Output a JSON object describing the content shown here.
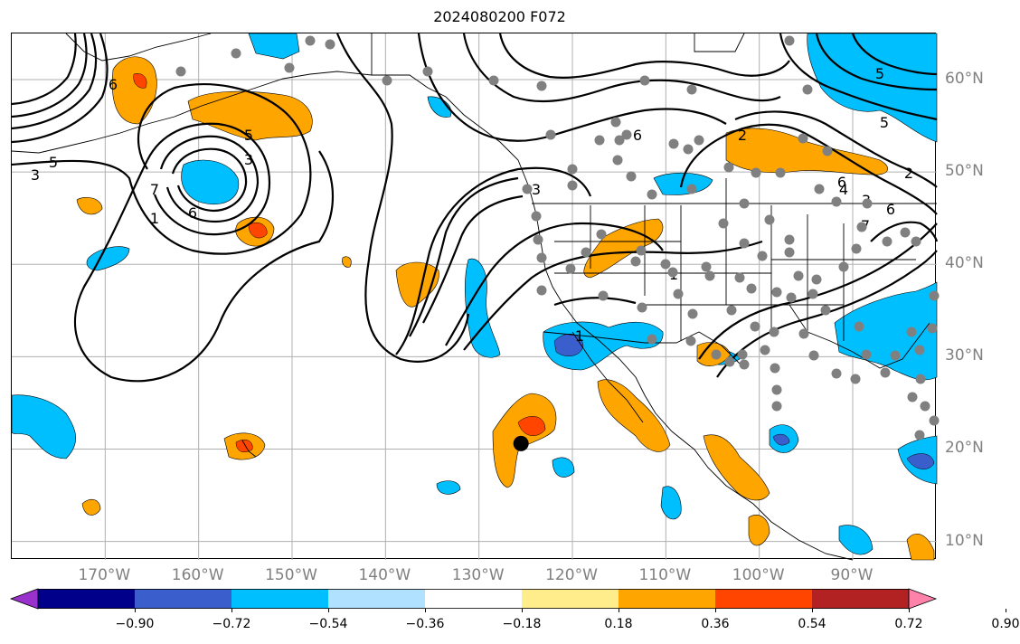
{
  "title": "2024080200 F072",
  "map": {
    "lon_range": [
      -180,
      -81
    ],
    "lat_range": [
      8,
      65
    ],
    "grid": true,
    "lon_ticks": [
      {
        "value": -170,
        "label": "170°W"
      },
      {
        "value": -160,
        "label": "160°W"
      },
      {
        "value": -150,
        "label": "150°W"
      },
      {
        "value": -140,
        "label": "140°W"
      },
      {
        "value": -130,
        "label": "130°W"
      },
      {
        "value": -120,
        "label": "120°W"
      },
      {
        "value": -110,
        "label": "110°W"
      },
      {
        "value": -100,
        "label": "100°W"
      },
      {
        "value": -90,
        "label": "90°W"
      }
    ],
    "lat_ticks": [
      {
        "value": 60,
        "label": "60°N"
      },
      {
        "value": 50,
        "label": "50°N"
      },
      {
        "value": 40,
        "label": "40°N"
      },
      {
        "value": 30,
        "label": "30°N"
      },
      {
        "value": 20,
        "label": "20°N"
      },
      {
        "value": 10,
        "label": "10°N"
      }
    ],
    "contour_labels": [
      "6",
      "5",
      "3",
      "1",
      "7",
      "6",
      "5",
      "3",
      "6",
      "3",
      "1",
      "1",
      "2",
      "6",
      "2",
      "5",
      "3",
      "4",
      "6",
      "5",
      "7",
      "1",
      "3"
    ],
    "marker": {
      "lon": -125.5,
      "lat": 20.6,
      "color": "#000000"
    },
    "station_dot_color": "#808080"
  },
  "colorbar": {
    "colors": [
      "#9932cc",
      "#00008b",
      "#3a5fcd",
      "#00bfff",
      "#b0e2ff",
      "#ffffff",
      "#ffec8b",
      "#ffa500",
      "#ff4500",
      "#b22222",
      "#ff82ab"
    ],
    "boundaries": [
      -0.9,
      -0.72,
      -0.54,
      -0.36,
      -0.18,
      0.18,
      0.36,
      0.54,
      0.72,
      0.9
    ],
    "tick_labels": [
      "−0.90",
      "−0.72",
      "−0.54",
      "−0.36",
      "−0.18",
      "0.18",
      "0.36",
      "0.54",
      "0.72",
      "0.90"
    ],
    "extend": "both"
  }
}
